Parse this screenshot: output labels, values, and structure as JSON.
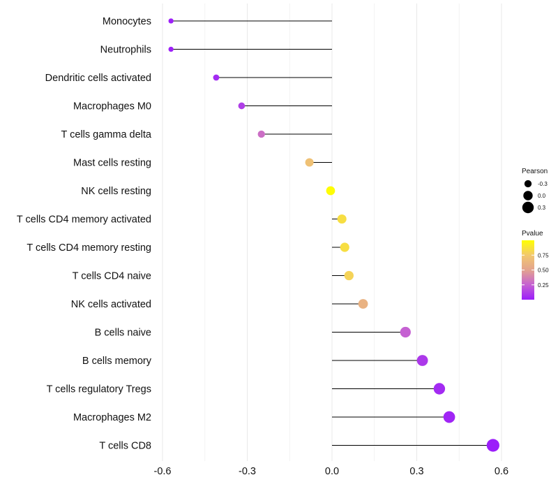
{
  "chart_data": {
    "type": "lollipop",
    "title": "",
    "xlabel": "",
    "ylabel": "",
    "xlim": [
      -0.6,
      0.6
    ],
    "x_ticks": [
      "-0.6",
      "-0.3",
      "0.0",
      "0.3",
      "0.6"
    ],
    "x_tick_values": [
      -0.6,
      -0.3,
      0.0,
      0.3,
      0.6
    ],
    "categories": [
      "Monocytes",
      "Neutrophils",
      "Dendritic cells activated",
      "Macrophages M0",
      "T cells gamma delta",
      "Mast cells resting",
      "NK cells resting",
      "T cells CD4 memory activated",
      "T cells CD4 memory resting",
      "T cells CD4 naive",
      "NK cells activated",
      "B cells naive",
      "B cells memory",
      "T cells regulatory  Tregs ",
      "Macrophages M2",
      "T cells CD8"
    ],
    "values": [
      -0.57,
      -0.57,
      -0.41,
      -0.32,
      -0.25,
      -0.08,
      -0.005,
      0.035,
      0.045,
      0.06,
      0.11,
      0.26,
      0.32,
      0.38,
      0.415,
      0.57
    ],
    "pvalues": [
      0.01,
      0.01,
      0.05,
      0.12,
      0.3,
      0.7,
      0.99,
      0.85,
      0.85,
      0.8,
      0.6,
      0.25,
      0.1,
      0.05,
      0.03,
      0.001
    ],
    "legend_pearson": {
      "title": "Pearson",
      "labels": [
        "-0.3",
        "0.0",
        "0.3"
      ],
      "values": [
        -0.3,
        0.0,
        0.3
      ]
    },
    "legend_pvalue": {
      "title": "Pvalue",
      "labels": [
        "0.75",
        "0.50",
        "0.25"
      ],
      "values": [
        0.75,
        0.5,
        0.25
      ],
      "range": [
        0.0,
        1.0
      ]
    },
    "colors": {
      "low": "#9b1dfa",
      "mid_low": "#c561d2",
      "mid": "#e3a38f",
      "mid_high": "#f2c86e",
      "high": "#ffff00",
      "stem": "#000000",
      "grid": "#ececec"
    },
    "grid": true,
    "legend_position": "right"
  }
}
